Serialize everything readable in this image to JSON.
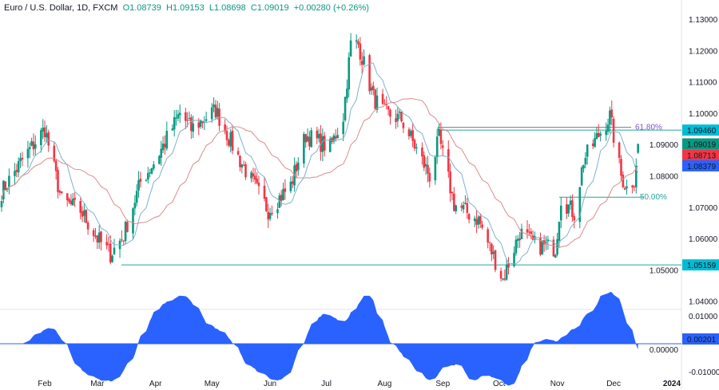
{
  "header": {
    "symbol": "Euro / U.S. Dollar, 1D, FXCM",
    "open": "O1.08739",
    "high": "H1.09153",
    "low": "L1.08698",
    "close": "C1.09019",
    "change": "+0.00280 (+0.26%)"
  },
  "chart_data": {
    "type": "candlestick",
    "title": "Euro / U.S. Dollar, 1D, FXCM",
    "ylim": [
      1.04,
      1.13
    ],
    "y_ticks": [
      "1.13000",
      "1.12000",
      "1.11000",
      "1.10000",
      "1.09000",
      "1.08000",
      "1.07000",
      "1.06000",
      "1.05000",
      "1.04000"
    ],
    "x_ticks": [
      "Feb",
      "Mar",
      "Apr",
      "May",
      "Jun",
      "Jul",
      "Aug",
      "Sep",
      "Oct",
      "Nov",
      "Dec",
      "2024"
    ],
    "close_path": [
      [
        "2023-01-09",
        1.075
      ],
      [
        "2023-01-20",
        1.085
      ],
      [
        "2023-02-01",
        1.095
      ],
      [
        "2023-02-10",
        1.072
      ],
      [
        "2023-02-20",
        1.069
      ],
      [
        "2023-03-01",
        1.06
      ],
      [
        "2023-03-08",
        1.055
      ],
      [
        "2023-03-15",
        1.061
      ],
      [
        "2023-03-24",
        1.078
      ],
      [
        "2023-04-01",
        1.085
      ],
      [
        "2023-04-14",
        1.1
      ],
      [
        "2023-04-20",
        1.095
      ],
      [
        "2023-05-03",
        1.101
      ],
      [
        "2023-05-15",
        1.086
      ],
      [
        "2023-05-31",
        1.069
      ],
      [
        "2023-06-12",
        1.077
      ],
      [
        "2023-06-20",
        1.093
      ],
      [
        "2023-07-03",
        1.089
      ],
      [
        "2023-07-10",
        1.099
      ],
      [
        "2023-07-14",
        1.122
      ],
      [
        "2023-07-18",
        1.122
      ],
      [
        "2023-07-26",
        1.105
      ],
      [
        "2023-08-01",
        1.1
      ],
      [
        "2023-08-10",
        1.098
      ],
      [
        "2023-08-25",
        1.08
      ],
      [
        "2023-08-30",
        1.092
      ],
      [
        "2023-09-07",
        1.071
      ],
      [
        "2023-09-20",
        1.066
      ],
      [
        "2023-10-03",
        1.047
      ],
      [
        "2023-10-12",
        1.062
      ],
      [
        "2023-10-20",
        1.058
      ],
      [
        "2023-10-31",
        1.057
      ],
      [
        "2023-11-03",
        1.073
      ],
      [
        "2023-11-10",
        1.068
      ],
      [
        "2023-11-15",
        1.085
      ],
      [
        "2023-11-29",
        1.099
      ],
      [
        "2023-12-05",
        1.08
      ],
      [
        "2023-12-08",
        1.076
      ],
      [
        "2023-12-12",
        1.079
      ],
      [
        "2023-12-14",
        1.09019
      ]
    ],
    "moving_averages": [
      {
        "color": "#7fb2c9"
      },
      {
        "color": "#d98c8f"
      }
    ],
    "levels": [
      {
        "price": 1.0946,
        "label": "1.09460",
        "color": "#00bcd4"
      },
      {
        "price": 1.05159,
        "label": "1.05159",
        "color": "#00bcd4"
      }
    ],
    "fib": [
      {
        "label": "61.80%",
        "price": 1.0955,
        "color": "#7e57c2"
      },
      {
        "label": "50.00%",
        "price": 1.0732,
        "color": "#26a69a"
      }
    ],
    "price_labels": [
      {
        "label": "1.09019",
        "color": "#089981"
      },
      {
        "label": "1.08713",
        "color": "#f23645"
      },
      {
        "label": "1.08379",
        "color": "#2962ff"
      }
    ],
    "oscillator": {
      "ylim": [
        -0.01,
        0.01
      ],
      "ticks": [
        "0.01000",
        "0.00000",
        "-0.01000"
      ],
      "last": "0.00201",
      "color": "#2962ff"
    },
    "colors": {
      "up": "#089981",
      "down": "#f23645"
    }
  }
}
